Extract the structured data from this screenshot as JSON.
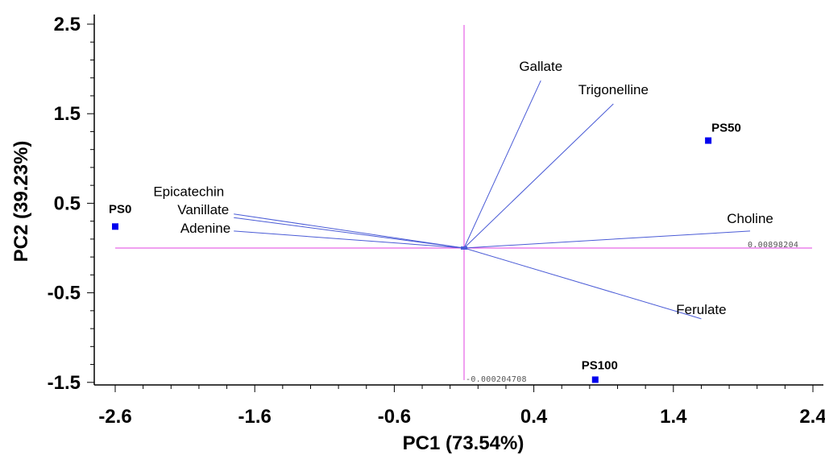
{
  "chart_data": {
    "type": "scatter",
    "subtype": "pca-biplot",
    "xlabel": "PC1 (73.54%)",
    "ylabel": "PC2 (39.23%)",
    "xlim": [
      -2.6,
      2.4
    ],
    "ylim": [
      -1.7,
      2.5
    ],
    "x_ticks": [
      -2.6,
      -1.6,
      -0.6,
      0.4,
      1.4,
      2.4
    ],
    "x_tick_labels": [
      "-2.6",
      "-1.6",
      "-0.6",
      "0.4",
      "1.4",
      "2.4"
    ],
    "y_ticks": [
      2.5,
      1.5,
      0.5,
      -0.5,
      -1.5
    ],
    "y_tick_labels": [
      "2.5",
      "1.5",
      "0.5",
      "-0.5",
      "-1.5"
    ],
    "reference_lines": {
      "vertical": {
        "x": -0.1,
        "label": "-0.000204708"
      },
      "horizontal": {
        "y": 0.0,
        "label": "0.00898204"
      }
    },
    "samples": [
      {
        "name": "PS0",
        "x": -2.6,
        "y": 0.24
      },
      {
        "name": "PS50",
        "x": 1.65,
        "y": 1.2
      },
      {
        "name": "PS100",
        "x": 0.84,
        "y": -1.47
      }
    ],
    "loadings": [
      {
        "name": "Gallate",
        "x": 0.45,
        "y": 1.87
      },
      {
        "name": "Trigonelline",
        "x": 0.97,
        "y": 1.61
      },
      {
        "name": "Epicatechin",
        "x": -1.75,
        "y": 0.38
      },
      {
        "name": "Vanillate",
        "x": -1.75,
        "y": 0.34
      },
      {
        "name": "Adenine",
        "x": -1.75,
        "y": 0.19
      },
      {
        "name": "Choline",
        "x": 1.95,
        "y": 0.19
      },
      {
        "name": "Ferulate",
        "x": 1.6,
        "y": -0.79
      }
    ],
    "colors": {
      "samples": "#0000ee",
      "loadings": "#4a5bd6",
      "reference": "#e040e0",
      "axes": "#000000"
    }
  }
}
